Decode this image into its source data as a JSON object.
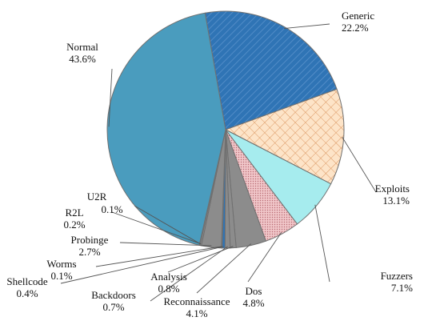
{
  "chart_data": {
    "type": "pie",
    "title": "",
    "slices": [
      {
        "name": "Generic",
        "label": "22.2%",
        "value": 22.2,
        "color": "#2f74b5",
        "pattern": "diag"
      },
      {
        "name": "Exploits",
        "label": "13.1%",
        "value": 13.1,
        "color": "#fde4c8",
        "pattern": "cross"
      },
      {
        "name": "Fuzzers",
        "label": "7.1%",
        "value": 7.1,
        "color": "#a6ecee",
        "pattern": "none"
      },
      {
        "name": "Dos",
        "label": "4.8%",
        "value": 4.8,
        "color": "#e8b4b8",
        "pattern": "dots"
      },
      {
        "name": "Reconnaissance",
        "label": "4.1%",
        "value": 4.1,
        "color": "#8c8c8c",
        "pattern": "none"
      },
      {
        "name": "Analysis",
        "label": "0.8%",
        "value": 0.8,
        "color": "#8c8c8c",
        "pattern": "none"
      },
      {
        "name": "Backdoors",
        "label": "0.7%",
        "value": 0.7,
        "color": "#8c8c8c",
        "pattern": "none"
      },
      {
        "name": "Shellcode",
        "label": "0.4%",
        "value": 0.4,
        "color": "#2f74b5",
        "pattern": "none"
      },
      {
        "name": "Worms",
        "label": "0.1%",
        "value": 0.1,
        "color": "#8c8c8c",
        "pattern": "none"
      },
      {
        "name": "Probinge",
        "label": "2.7%",
        "value": 2.7,
        "color": "#8c8c8c",
        "pattern": "none"
      },
      {
        "name": "R2L",
        "label": "0.2%",
        "value": 0.2,
        "color": "#8c8c8c",
        "pattern": "none"
      },
      {
        "name": "U2R",
        "label": "0.1%",
        "value": 0.1,
        "color": "#8c8c8c",
        "pattern": "none"
      },
      {
        "name": "Normal",
        "label": "43.6%",
        "value": 43.6,
        "color": "#4a9cbe",
        "pattern": "none"
      }
    ]
  }
}
